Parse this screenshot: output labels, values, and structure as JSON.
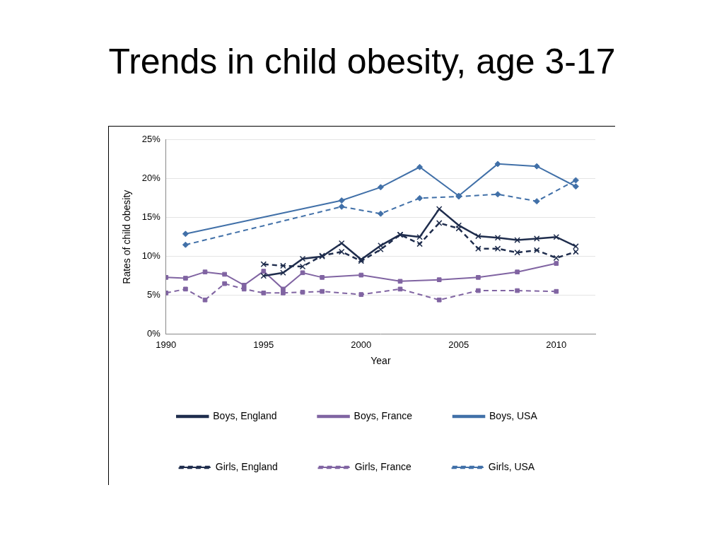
{
  "chart_data": {
    "type": "line",
    "title": "Trends in child obesity, age 3-17",
    "x_label": "Year",
    "y_label": "Rates of child obesity",
    "xlim": [
      1990,
      2012
    ],
    "xticks": [
      1990,
      1995,
      2000,
      2005,
      2010
    ],
    "ylim": [
      0,
      25
    ],
    "yticks": [
      {
        "value": 0,
        "label": "0%"
      },
      {
        "value": 5,
        "label": "5%"
      },
      {
        "value": 10,
        "label": "10%"
      },
      {
        "value": 15,
        "label": "15%"
      },
      {
        "value": 20,
        "label": "20%"
      },
      {
        "value": 25,
        "label": "25%"
      }
    ],
    "grid": true,
    "legend": "bottom",
    "series": [
      {
        "name": "Boys, England",
        "color": "#1f2d4d",
        "marker": "cross",
        "line_style": "solid",
        "x": [
          1995,
          1996,
          1997,
          1998,
          1999,
          2000,
          2001,
          2002,
          2003,
          2004,
          2005,
          2006,
          2007,
          2008,
          2009,
          2010,
          2011
        ],
        "values": [
          7.5,
          7.9,
          9.7,
          10.0,
          11.7,
          9.6,
          11.4,
          12.8,
          12.5,
          16.1,
          14.0,
          12.6,
          12.4,
          12.1,
          12.3,
          12.5,
          11.3
        ]
      },
      {
        "name": "Boys, France",
        "color": "#8064a2",
        "marker": "square",
        "line_style": "solid",
        "x": [
          1990,
          1991,
          1992,
          1993,
          1994,
          1995,
          1996,
          1997,
          1998,
          2000,
          2002,
          2004,
          2006,
          2008,
          2010
        ],
        "values": [
          7.3,
          7.2,
          8.0,
          7.7,
          6.3,
          8.1,
          5.8,
          7.9,
          7.3,
          7.6,
          6.8,
          7.0,
          7.3,
          8.0,
          9.1
        ]
      },
      {
        "name": "Boys, USA",
        "color": "#4170a8",
        "marker": "diamond",
        "line_style": "solid",
        "x": [
          1991,
          1999,
          2001,
          2003,
          2005,
          2007,
          2009,
          2011
        ],
        "values": [
          12.9,
          17.2,
          18.9,
          21.5,
          17.8,
          21.9,
          21.6,
          19.0
        ]
      },
      {
        "name": "Girls, England",
        "color": "#1f2d4d",
        "marker": "cross",
        "line_style": "dashed",
        "x": [
          1995,
          1996,
          1997,
          1998,
          1999,
          2000,
          2001,
          2002,
          2003,
          2004,
          2005,
          2006,
          2007,
          2008,
          2009,
          2010,
          2011
        ],
        "values": [
          9.0,
          8.8,
          8.7,
          10.1,
          10.6,
          9.4,
          10.9,
          12.8,
          11.6,
          14.3,
          13.6,
          11.0,
          11.0,
          10.5,
          10.8,
          9.8,
          10.6
        ]
      },
      {
        "name": "Girls, France",
        "color": "#8064a2",
        "marker": "square",
        "line_style": "dashed",
        "x": [
          1990,
          1991,
          1992,
          1993,
          1994,
          1995,
          1996,
          1997,
          1998,
          2000,
          2002,
          2004,
          2006,
          2008,
          2010
        ],
        "values": [
          5.3,
          5.8,
          4.4,
          6.5,
          5.8,
          5.3,
          5.3,
          5.4,
          5.5,
          5.1,
          5.8,
          4.4,
          5.6,
          5.6,
          5.5
        ]
      },
      {
        "name": "Girls, USA",
        "color": "#4170a8",
        "marker": "diamond",
        "line_style": "dashed",
        "x": [
          1991,
          1999,
          2001,
          2003,
          2005,
          2007,
          2009,
          2011
        ],
        "values": [
          11.5,
          16.4,
          15.5,
          17.5,
          17.7,
          18.0,
          17.1,
          19.8
        ]
      }
    ]
  }
}
